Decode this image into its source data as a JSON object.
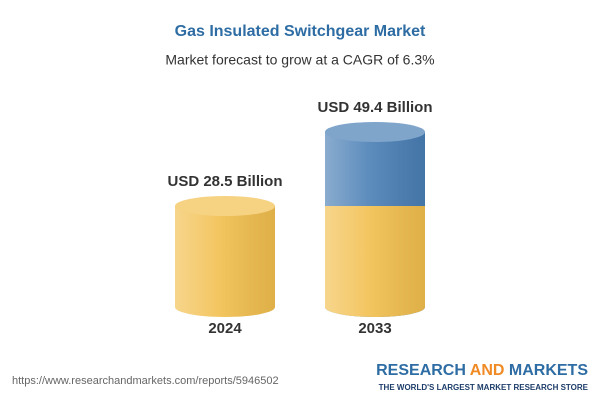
{
  "chart_data": {
    "type": "cylinder",
    "title": "Gas Insulated Switchgear Market",
    "subtitle": "Market forecast to grow at a CAGR of 6.3%",
    "categories": [
      "2024",
      "2033"
    ],
    "values": [
      28.5,
      49.4
    ],
    "value_labels": [
      "USD 28.5 Billion",
      "USD 49.4 Billion"
    ],
    "color": "#f2bf4e",
    "growth_color": "#4a7fb5"
  },
  "footer": {
    "url": "https://www.researchandmarkets.com/reports/5946502",
    "brand": [
      "RESEARCH ",
      "AND",
      " MARKETS"
    ],
    "tagline": "THE WORLD'S LARGEST MARKET RESEARCH STORE"
  }
}
